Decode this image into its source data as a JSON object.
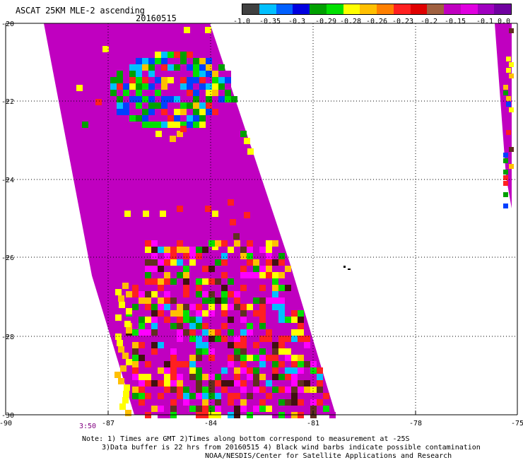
{
  "header": {
    "title": "ASCAT 25KM MLE-2 ascending",
    "date": "20160515"
  },
  "colorbar": {
    "colors": [
      "#404040",
      "#00c0ff",
      "#0060ff",
      "#0000e0",
      "#00a000",
      "#00e000",
      "#ffff00",
      "#ffc000",
      "#ff8000",
      "#ff2020",
      "#e00000",
      "#a06040",
      "#c000c0",
      "#e000e0",
      "#a000c0",
      "#7000a0"
    ],
    "labels": [
      "-1.0",
      "-0.35",
      "-0.3",
      "-0.29",
      "-0.28",
      "-0.26",
      "-0.23",
      "-0.2",
      "-0.15",
      "-0.1",
      "0.0"
    ]
  },
  "map": {
    "lon_ticks": [
      "-90",
      "-87",
      "-84",
      "-81",
      "-78",
      "-75"
    ],
    "lat_ticks": [
      "-20",
      "-22",
      "-24",
      "-26",
      "-28",
      "-30"
    ],
    "swath_fill_color": "#c000c0",
    "palette": {
      "magenta": "#c000c0",
      "bright_magenta": "#ff00ff",
      "purple": "#8000a0",
      "blue": "#0040ff",
      "light_blue": "#00c0ff",
      "green": "#00a000",
      "lime": "#00e000",
      "yellow": "#ffff00",
      "orange": "#ffc000",
      "red": "#ff2020",
      "brown": "#603020",
      "dark_brown": "#401010"
    }
  },
  "footer": {
    "time_label": "3:50",
    "note_line1": "Note: 1) Times are GMT 2)Times along bottom correspond to measurement at -25S",
    "note_line2": "3)Data buffer is 22 hrs from 20160515 4) Black wind barbs indicate possible contamination",
    "note_line3": "NOAA/NESDIS/Center for Satellite Applications and Research"
  }
}
